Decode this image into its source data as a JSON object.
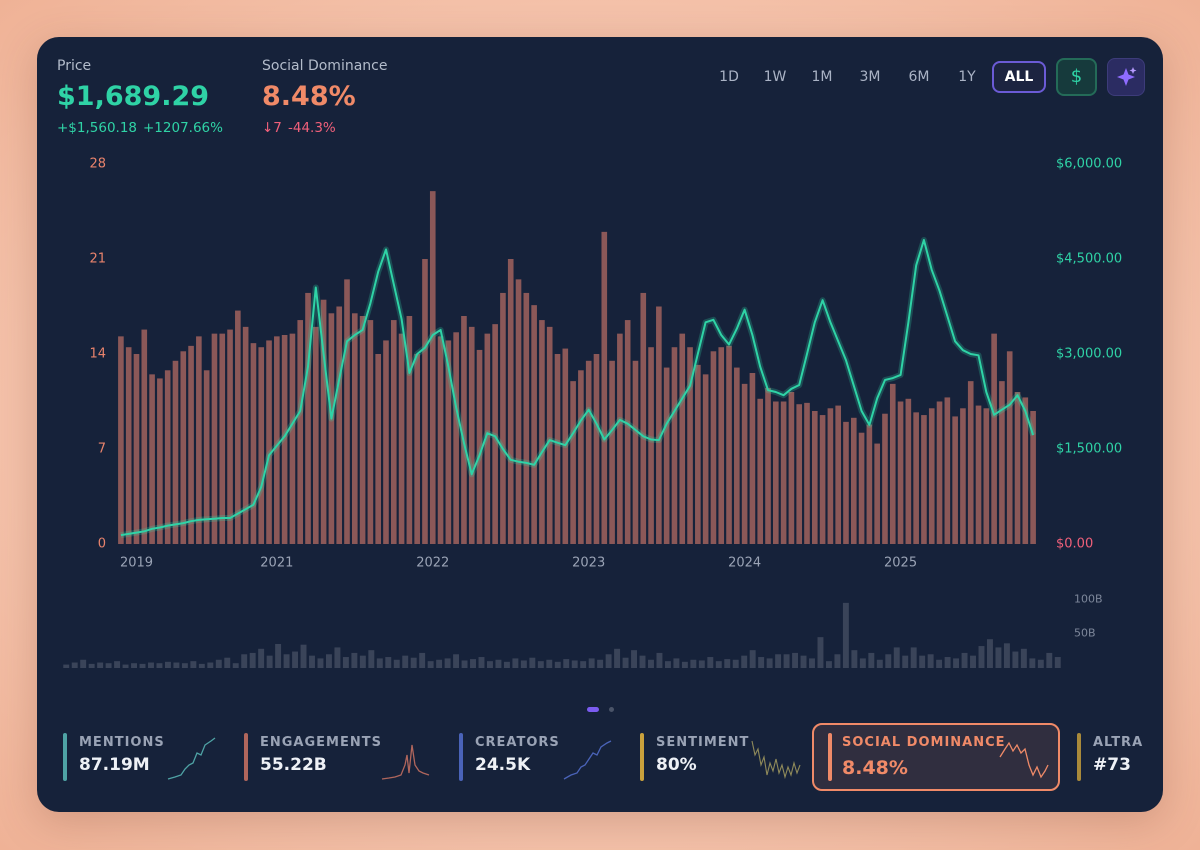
{
  "header": {
    "price": "$1,689.29",
    "price_change": "+$1,560.18",
    "price_change_pct": "+1207.66%",
    "metric_value": "8.48%",
    "metric_change": "↓7",
    "metric_change_pct": "-44.3%"
  },
  "toolbar": {
    "ranges": [
      "1D",
      "1W",
      "1M",
      "3M",
      "6M",
      "1Y",
      "ALL"
    ],
    "selected": "ALL",
    "currency": "$"
  },
  "chart_data": [
    {
      "type": "bar",
      "categories": [
        null,
        null,
        "2019",
        null,
        null,
        null,
        null,
        null,
        null,
        null,
        null,
        null,
        null,
        null,
        null,
        null,
        null,
        null,
        null,
        null,
        "2021",
        null,
        null,
        null,
        null,
        null,
        null,
        null,
        null,
        null,
        null,
        null,
        null,
        null,
        null,
        null,
        null,
        null,
        null,
        null,
        "2022",
        null,
        null,
        null,
        null,
        null,
        null,
        null,
        null,
        null,
        null,
        null,
        null,
        null,
        null,
        null,
        null,
        null,
        null,
        null,
        "2023",
        null,
        null,
        null,
        null,
        null,
        null,
        null,
        null,
        null,
        null,
        null,
        null,
        null,
        null,
        null,
        null,
        null,
        null,
        null,
        "2024",
        null,
        null,
        null,
        null,
        null,
        null,
        null,
        null,
        null,
        null,
        null,
        null,
        null,
        null,
        null,
        null,
        null,
        null,
        null,
        "2025",
        null,
        null,
        null,
        null,
        null,
        null,
        null,
        null,
        null,
        null,
        null,
        null,
        null,
        null,
        null,
        null,
        null
      ],
      "series": [
        {
          "name": "Social Dominance",
          "type": "bar",
          "color": "#a0625e",
          "values": [
            15.3,
            14.5,
            14,
            15.8,
            12.5,
            12.2,
            12.8,
            13.5,
            14.2,
            14.6,
            15.3,
            12.8,
            15.5,
            15.5,
            15.8,
            17.2,
            16,
            14.8,
            14.5,
            15,
            15.3,
            15.4,
            15.5,
            16.5,
            18.5,
            16,
            18,
            17,
            17.5,
            19.5,
            17,
            16.8,
            16.5,
            14,
            15,
            16.5,
            15.5,
            16.8,
            14,
            21,
            26,
            15.3,
            15,
            15.6,
            16.8,
            16,
            14.3,
            15.5,
            16.2,
            18.5,
            21,
            19.5,
            18.5,
            17.6,
            16.5,
            16,
            14,
            14.4,
            12,
            12.8,
            13.5,
            14,
            23,
            13.5,
            15.5,
            16.5,
            13.5,
            18.5,
            14.5,
            17.5,
            13,
            14.5,
            15.5,
            14.5,
            13.2,
            12.5,
            14.2,
            14.5,
            14.6,
            13,
            11.8,
            12.6,
            10.7,
            11.5,
            10.5,
            10.5,
            11.2,
            10.3,
            10.4,
            9.8,
            9.5,
            10,
            10.2,
            9,
            9.3,
            8.2,
            8.8,
            7.4,
            9.6,
            11.8,
            10.5,
            10.7,
            9.7,
            9.5,
            10,
            10.5,
            10.8,
            9.4,
            10,
            12,
            10.2,
            10,
            15.5,
            12,
            14.2,
            11.2,
            10.8,
            9.8
          ]
        },
        {
          "name": "Price",
          "type": "line",
          "axis": "y2",
          "color": "#2fd3a6",
          "values": [
            140,
            160,
            180,
            200,
            240,
            260,
            290,
            310,
            330,
            360,
            380,
            390,
            400,
            410,
            410,
            480,
            550,
            620,
            900,
            1400,
            1550,
            1700,
            1900,
            2100,
            2800,
            4050,
            3000,
            1980,
            2600,
            3200,
            3300,
            3380,
            3800,
            4300,
            4650,
            4100,
            3550,
            2700,
            3000,
            3100,
            3300,
            3380,
            2800,
            2150,
            1600,
            1100,
            1400,
            1750,
            1700,
            1500,
            1330,
            1300,
            1280,
            1250,
            1450,
            1640,
            1600,
            1560,
            1750,
            1950,
            2120,
            1900,
            1650,
            1800,
            1960,
            1900,
            1800,
            1700,
            1650,
            1640,
            1900,
            2100,
            2300,
            2500,
            3000,
            3500,
            3540,
            3300,
            3150,
            3400,
            3700,
            3300,
            2800,
            2430,
            2400,
            2350,
            2450,
            2510,
            3000,
            3500,
            3850,
            3500,
            3200,
            2900,
            2500,
            2100,
            1880,
            2300,
            2590,
            2620,
            2670,
            3500,
            4400,
            4800,
            4330,
            4000,
            3600,
            3200,
            3060,
            3000,
            2980,
            2400,
            2040,
            2120,
            2200,
            2350,
            2100,
            1720
          ]
        }
      ],
      "ylim": [
        0,
        28
      ],
      "yticks": [
        0,
        7,
        14,
        21,
        28
      ],
      "y2lim": [
        0,
        6000
      ],
      "y2ticks": [
        {
          "value": 0,
          "label": "$0.00"
        },
        {
          "value": 1500,
          "label": "$1,500.00"
        },
        {
          "value": 3000,
          "label": "$3,000.00"
        },
        {
          "value": 4500,
          "label": "$4,500.00"
        },
        {
          "value": 6000,
          "label": "$6,000.00"
        }
      ]
    },
    {
      "type": "bar",
      "color": "#3a4459",
      "values": [
        5,
        8,
        12,
        6,
        8,
        7,
        10,
        5,
        7,
        6,
        8,
        7,
        9,
        8,
        7,
        10,
        6,
        8,
        12,
        15,
        7,
        20,
        22,
        28,
        18,
        35,
        20,
        24,
        34,
        18,
        14,
        20,
        30,
        16,
        22,
        18,
        26,
        14,
        16,
        12,
        18,
        15,
        22,
        10,
        12,
        14,
        20,
        11,
        13,
        16,
        10,
        12,
        9,
        14,
        11,
        15,
        10,
        12,
        9,
        13,
        11,
        10,
        14,
        12,
        20,
        28,
        15,
        26,
        18,
        12,
        22,
        10,
        14,
        9,
        12,
        11,
        16,
        10,
        13,
        12,
        18,
        26,
        16,
        14,
        20,
        20,
        22,
        18,
        14,
        45,
        10,
        20,
        95,
        26,
        14,
        22,
        12,
        20,
        30,
        18,
        30,
        18,
        20,
        12,
        16,
        14,
        22,
        18,
        32,
        42,
        30,
        36,
        24,
        28,
        14,
        12,
        22,
        16
      ],
      "ylim": [
        0,
        105
      ],
      "yticks": [
        {
          "value": 50,
          "label": "50B"
        },
        {
          "value": 100,
          "label": "100B"
        }
      ]
    }
  ],
  "metrics": [
    {
      "label": "MENTIONS",
      "value": "87.19M",
      "color": "#4fa3a5"
    },
    {
      "label": "ENGAGEMENTS",
      "value": "55.22B",
      "color": "#b0665c"
    },
    {
      "label": "CREATORS",
      "value": "24.5K",
      "color": "#4a63b8"
    },
    {
      "label": "SENTIMENT",
      "value": "80%",
      "color": "#c9a13c"
    },
    {
      "label": "SOCIAL DOMINANCE",
      "value": "8.48%",
      "color": "#f08a68",
      "selected": true
    },
    {
      "label": "ALTRA",
      "value": "#73",
      "color": "#a98a3a"
    }
  ]
}
